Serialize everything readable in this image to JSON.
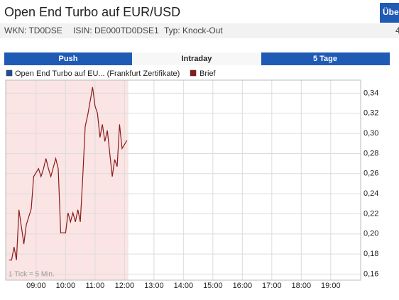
{
  "header": {
    "title": "Open End Turbo auf EUR/USD",
    "button": "Übe",
    "info": [
      "WKN: TD0DSE",
      "ISIN: DE000TD0DSE1",
      "Typ: Knock-Out"
    ],
    "info_right": "4"
  },
  "tabs": [
    "Push",
    "Intraday",
    "5 Tage"
  ],
  "legend_instrument": {
    "label": "Open End Turbo auf EU... (Frankfurt Zertifikate)",
    "color": "#1f4e9c"
  },
  "chart_data": {
    "type": "line",
    "note": "1 Tick = 5 Min.",
    "x": [
      "08:05",
      "08:10",
      "08:15",
      "08:20",
      "08:25",
      "08:35",
      "08:40",
      "08:50",
      "08:55",
      "09:05",
      "09:10",
      "09:15",
      "09:20",
      "09:25",
      "09:30",
      "09:40",
      "09:45",
      "09:50",
      "10:00",
      "10:05",
      "10:10",
      "10:15",
      "10:20",
      "10:25",
      "10:30",
      "10:35",
      "10:40",
      "10:45",
      "10:55",
      "11:00",
      "11:05",
      "11:10",
      "11:15",
      "11:20",
      "11:25",
      "11:35",
      "11:40",
      "11:45",
      "11:50",
      "11:55",
      "12:05"
    ],
    "series": [
      {
        "name": "Brief",
        "color": "#8b1a1a",
        "values": [
          0.174,
          0.174,
          0.187,
          0.174,
          0.224,
          0.19,
          0.209,
          0.225,
          0.257,
          0.265,
          0.257,
          0.265,
          0.275,
          0.265,
          0.257,
          0.275,
          0.265,
          0.201,
          0.201,
          0.221,
          0.212,
          0.221,
          0.212,
          0.224,
          0.212,
          0.257,
          0.307,
          0.318,
          0.346,
          0.327,
          0.32,
          0.296,
          0.309,
          0.292,
          0.303,
          0.257,
          0.274,
          0.267,
          0.309,
          0.285,
          0.293
        ]
      }
    ],
    "xlim": [
      "07:58",
      "20:01"
    ],
    "xticks": [
      "09:00",
      "10:00",
      "11:00",
      "12:00",
      "13:00",
      "14:00",
      "15:00",
      "16:00",
      "17:00",
      "18:00",
      "19:00"
    ],
    "ylim": [
      0.154,
      0.353
    ],
    "yticks": [
      {
        "value": 0.16,
        "label": "0,16"
      },
      {
        "value": 0.18,
        "label": "0,18"
      },
      {
        "value": 0.2,
        "label": "0,20"
      },
      {
        "value": 0.22,
        "label": "0,22"
      },
      {
        "value": 0.24,
        "label": "0,24"
      },
      {
        "value": 0.26,
        "label": "0,26"
      },
      {
        "value": 0.28,
        "label": "0,28"
      },
      {
        "value": 0.3,
        "label": "0,30"
      },
      {
        "value": 0.32,
        "label": "0,32"
      },
      {
        "value": 0.34,
        "label": "0,34"
      }
    ],
    "grid": true,
    "shade_color": "#fbe4e4"
  }
}
